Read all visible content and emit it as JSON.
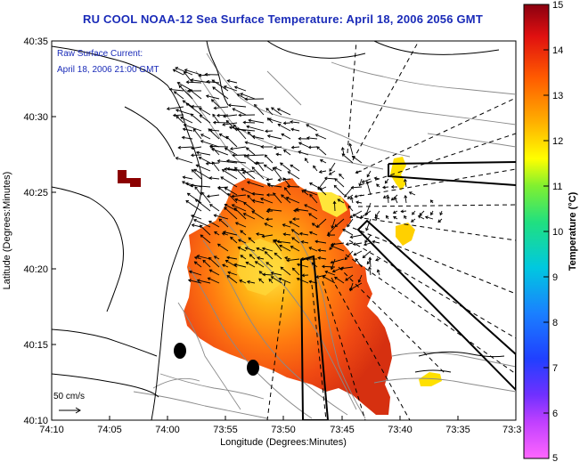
{
  "title": "RU COOL  NOAA-12  Sea Surface Temperature:  April 18, 2006 2056 GMT",
  "legend": {
    "line1": "Raw Surface Current:",
    "line2": "April 18, 2006 21:00 GMT"
  },
  "scale_arrow": {
    "label": "50 cm/s"
  },
  "x_axis": {
    "label": "Longitude (Degrees:Minutes)",
    "ticks": [
      "74:10",
      "74:05",
      "74:00",
      "73:55",
      "73:50",
      "73:45",
      "73:40",
      "73:35",
      "73:3"
    ]
  },
  "y_axis": {
    "label": "Latitude (Degrees:Minutes)",
    "ticks": [
      "40:35",
      "40:30",
      "40:25",
      "40:20",
      "40:15",
      "40:10"
    ]
  },
  "colorbar": {
    "label": "Temperature (°C)",
    "ticks": [
      "15",
      "14",
      "13",
      "12",
      "11",
      "10",
      "9",
      "8",
      "7",
      "6",
      "5"
    ],
    "min": 5,
    "max": 15
  },
  "colors": {
    "title": "#1a2bb8",
    "warm": "#e63a10",
    "hot": "#ff7a00",
    "yellow": "#ffe000",
    "maroon": "#8b0000"
  }
}
